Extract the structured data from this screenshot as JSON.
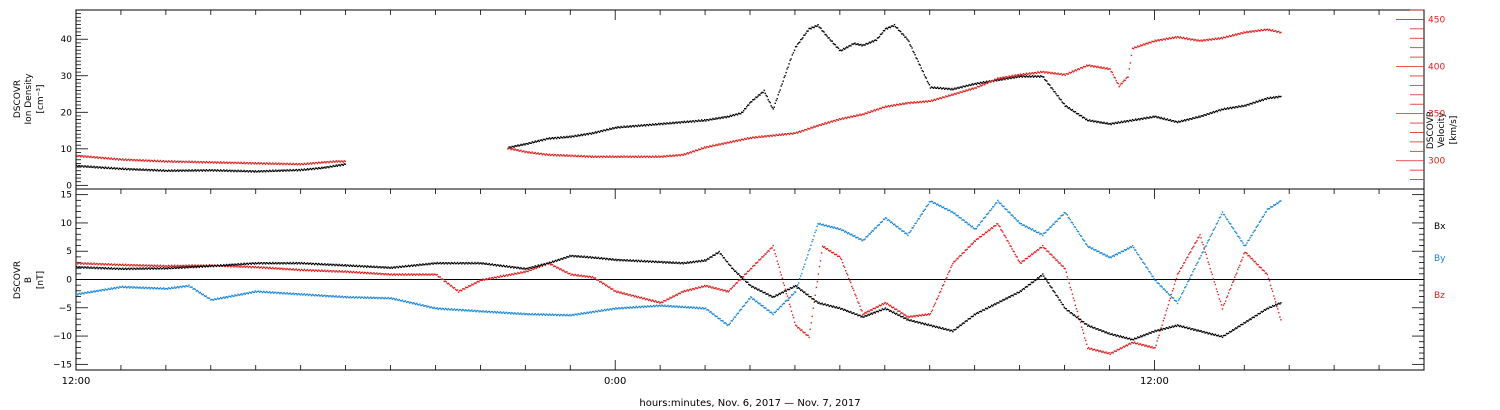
{
  "colors": {
    "black": "#000000",
    "blue": "#1a86d6",
    "red": "#e02020",
    "axis": "#000000"
  },
  "chart_data": [
    {
      "type": "scatter",
      "panel": "top",
      "ylabel_left": [
        "DSCOVR",
        "Ion Density",
        "[cm⁻³]"
      ],
      "ylabel_right": [
        "DSCOVR",
        "Velocity",
        "[km/s]"
      ],
      "left_ticks": [
        "0",
        "10",
        "20",
        "30",
        "40"
      ],
      "left_tick_values": [
        0,
        10,
        20,
        30,
        40
      ],
      "right_ticks": [
        "300",
        "350",
        "400",
        "450"
      ],
      "right_tick_values": [
        300,
        350,
        400,
        450
      ],
      "ylim_left": [
        -1,
        48
      ],
      "ylim_right": [
        270,
        460
      ],
      "x_range_hours": [
        12,
        42
      ],
      "series": [
        {
          "axis": "left",
          "color": "black",
          "x": [
            12.0,
            13.0,
            14.0,
            15.0,
            16.0,
            17.0,
            17.5,
            17.8,
            18.0,
            21.6,
            21.8,
            22.0,
            22.5,
            23.0,
            23.5,
            24.0,
            24.5,
            25.0,
            25.5,
            26.0,
            26.5,
            26.8,
            27.0,
            27.3,
            27.5,
            27.7,
            27.9,
            28.0,
            28.3,
            28.5,
            28.7,
            29.0,
            29.3,
            29.5,
            29.8,
            30.0,
            30.2,
            30.5,
            31.0,
            31.5,
            32.0,
            32.5,
            33.0,
            33.5,
            34.0,
            34.5,
            35.0,
            35.5,
            36.0,
            36.5,
            37.0,
            37.5,
            38.0,
            38.5,
            38.8
          ],
          "y": [
            5.5,
            4.7,
            4.2,
            4.3,
            4.0,
            4.4,
            5.0,
            5.6,
            6.0,
            10.5,
            11.0,
            11.5,
            13.0,
            13.5,
            14.5,
            16.0,
            16.5,
            17.0,
            17.5,
            18.0,
            19.0,
            20.0,
            23.0,
            26.0,
            21.0,
            28.0,
            35.0,
            38.0,
            43.0,
            44.0,
            41.0,
            37.0,
            39.0,
            38.5,
            40.0,
            43.0,
            44.0,
            40.0,
            27.0,
            26.5,
            28.0,
            29.0,
            30.0,
            30.0,
            22.0,
            18.0,
            17.0,
            18.0,
            19.0,
            17.5,
            19.0,
            21.0,
            22.0,
            24.0,
            24.5
          ]
        },
        {
          "axis": "right",
          "color": "red",
          "x": [
            12.0,
            13.0,
            14.0,
            15.0,
            16.0,
            17.0,
            17.5,
            17.8,
            18.0,
            21.6,
            21.8,
            22.0,
            22.5,
            23.0,
            23.5,
            24.0,
            24.5,
            25.0,
            25.5,
            26.0,
            26.5,
            27.0,
            28.0,
            28.5,
            29.0,
            29.5,
            30.0,
            30.5,
            31.0,
            32.0,
            32.5,
            33.0,
            33.5,
            34.0,
            34.5,
            35.0,
            35.2,
            35.4,
            35.5,
            36.0,
            36.5,
            37.0,
            37.5,
            38.0,
            38.5,
            38.8
          ],
          "y": [
            306,
            302,
            300,
            299,
            298,
            297,
            299,
            300,
            300,
            314,
            312,
            310,
            307,
            306,
            305,
            305,
            305,
            305,
            307,
            315,
            320,
            325,
            330,
            338,
            345,
            350,
            358,
            362,
            364,
            378,
            388,
            392,
            395,
            392,
            402,
            398,
            380,
            390,
            420,
            428,
            432,
            428,
            431,
            437,
            440,
            437
          ]
        }
      ]
    },
    {
      "type": "scatter",
      "panel": "bottom",
      "ylabel_left": [
        "DSCOVR",
        "B",
        "[nT]"
      ],
      "left_ticks": [
        "−15",
        "−10",
        "−5",
        "0",
        "5",
        "10",
        "15"
      ],
      "left_tick_values": [
        -15,
        -10,
        -5,
        0,
        5,
        10,
        15
      ],
      "ylim_left": [
        -16,
        16
      ],
      "legend": [
        "Bx",
        "By",
        "Bz"
      ],
      "x_range_hours": [
        12,
        42
      ],
      "series": [
        {
          "name": "Bx",
          "color": "black",
          "x": [
            12.0,
            13.0,
            14.0,
            15.0,
            16.0,
            17.0,
            18.0,
            19.0,
            20.0,
            21.0,
            22.0,
            22.5,
            23.0,
            23.5,
            24.0,
            24.5,
            25.0,
            25.5,
            26.0,
            26.3,
            26.6,
            27.0,
            27.5,
            28.0,
            28.5,
            29.0,
            29.5,
            30.0,
            30.5,
            31.0,
            31.5,
            32.0,
            32.5,
            33.0,
            33.5,
            34.0,
            34.5,
            35.0,
            35.5,
            36.0,
            36.5,
            37.0,
            37.5,
            38.0,
            38.5,
            38.8
          ],
          "y": [
            2.3,
            2.0,
            2.1,
            2.5,
            3.0,
            3.0,
            2.6,
            2.2,
            3.0,
            3.0,
            2.0,
            3.0,
            4.3,
            4.0,
            3.6,
            3.4,
            3.2,
            3.0,
            3.5,
            5.0,
            2.0,
            -1.0,
            -3.0,
            -1.0,
            -4.0,
            -5.0,
            -6.5,
            -5.0,
            -7.0,
            -8.0,
            -9.0,
            -6.0,
            -4.0,
            -2.0,
            1.0,
            -5.0,
            -8.0,
            -9.5,
            -10.5,
            -9.0,
            -8.0,
            -9.0,
            -10.0,
            -7.5,
            -5.0,
            -4.0
          ]
        },
        {
          "name": "By",
          "color": "blue",
          "x": [
            12.0,
            13.0,
            14.0,
            14.5,
            15.0,
            16.0,
            17.0,
            18.0,
            19.0,
            20.0,
            21.0,
            22.0,
            23.0,
            24.0,
            25.0,
            26.0,
            26.5,
            27.0,
            27.5,
            28.0,
            28.5,
            29.0,
            29.5,
            30.0,
            30.5,
            31.0,
            31.5,
            32.0,
            32.5,
            33.0,
            33.5,
            34.0,
            34.5,
            35.0,
            35.5,
            36.0,
            36.5,
            37.0,
            37.5,
            38.0,
            38.5,
            38.8
          ],
          "y": [
            -2.5,
            -1.2,
            -1.5,
            -1.0,
            -3.5,
            -2.0,
            -2.5,
            -3.0,
            -3.2,
            -5.0,
            -5.5,
            -6.0,
            -6.2,
            -5.0,
            -4.5,
            -5.0,
            -8.0,
            -3.0,
            -6.0,
            -2.0,
            10.0,
            9.0,
            7.0,
            11.0,
            8.0,
            14.0,
            12.0,
            9.0,
            14.0,
            10.0,
            8.0,
            12.0,
            6.0,
            4.0,
            6.0,
            0.0,
            -4.0,
            4.0,
            12.0,
            6.0,
            12.5,
            14.0
          ]
        },
        {
          "name": "Bz",
          "color": "red",
          "x": [
            12.0,
            13.0,
            14.0,
            15.0,
            16.0,
            17.0,
            18.0,
            19.0,
            20.0,
            20.5,
            21.0,
            22.0,
            22.5,
            23.0,
            23.5,
            24.0,
            24.5,
            25.0,
            25.5,
            26.0,
            26.5,
            27.0,
            27.5,
            28.0,
            28.3,
            28.6,
            29.0,
            29.5,
            30.0,
            30.5,
            31.0,
            31.5,
            32.0,
            32.5,
            33.0,
            33.5,
            34.0,
            34.5,
            35.0,
            35.5,
            36.0,
            36.5,
            37.0,
            37.5,
            38.0,
            38.5,
            38.8
          ],
          "y": [
            3.0,
            2.7,
            2.5,
            2.6,
            2.3,
            1.8,
            1.5,
            1.0,
            1.0,
            -2.0,
            0.0,
            1.5,
            3.0,
            1.0,
            0.5,
            -2.0,
            -3.0,
            -4.0,
            -2.0,
            -1.0,
            -2.0,
            2.0,
            6.0,
            -8.0,
            -10.0,
            6.0,
            4.0,
            -6.0,
            -4.0,
            -6.5,
            -6.0,
            3.0,
            7.0,
            10.0,
            3.0,
            6.0,
            2.0,
            -12.0,
            -13.0,
            -11.0,
            -12.0,
            1.0,
            8.0,
            -5.0,
            5.0,
            1.0,
            -7.0
          ]
        }
      ]
    }
  ],
  "x_axis": {
    "tick_labels": [
      "12:00",
      "0:00",
      "12:00"
    ],
    "tick_hours": [
      12,
      24,
      36
    ],
    "title": "hours:minutes, Nov.  6, 2017 — Nov.  7, 2017"
  }
}
